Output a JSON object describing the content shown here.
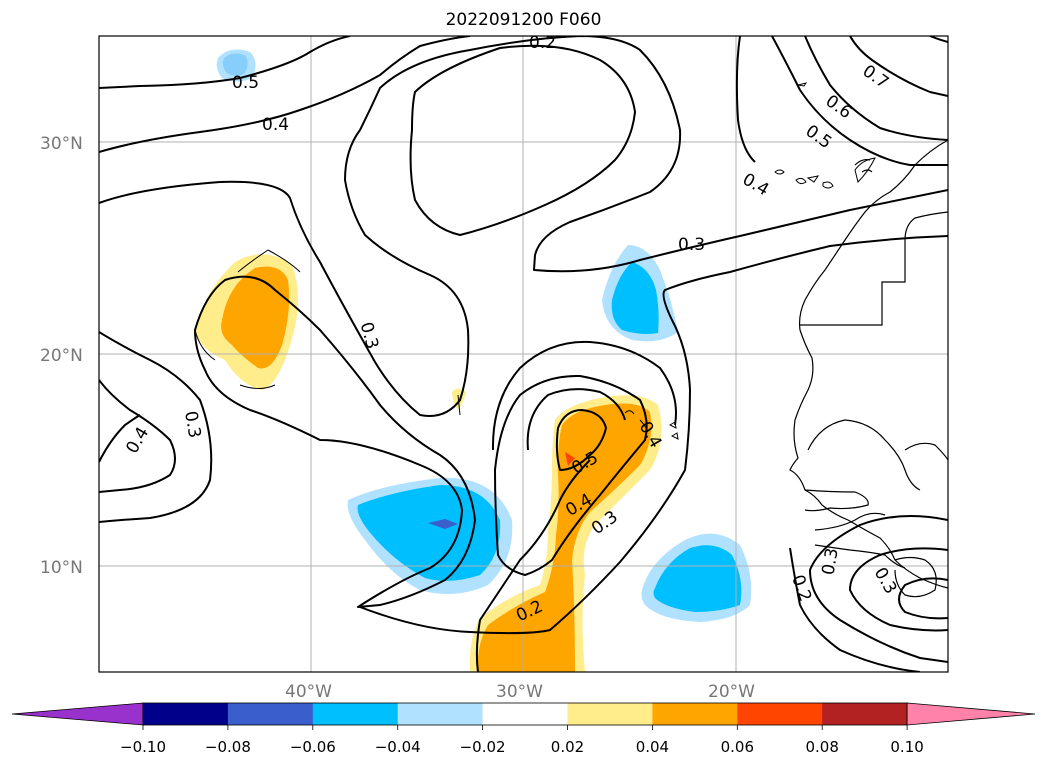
{
  "title": "2022091200 F060",
  "lat_labels": [
    "30°N",
    "20°N",
    "10°N"
  ],
  "lon_labels": [
    "40°W",
    "30°W",
    "20°W"
  ],
  "colorbar": {
    "colors": [
      "#9932cc",
      "#00008b",
      "#3a5fcd",
      "#00bfff",
      "#b0e2ff",
      "#ffffff",
      "#ffec8b",
      "#ffa500",
      "#ff4500",
      "#b22222",
      "#ff82ab"
    ],
    "ticks": [
      "−0.10",
      "−0.08",
      "−0.06",
      "−0.04",
      "−0.02",
      "0.02",
      "0.04",
      "0.06",
      "0.08",
      "0.10"
    ]
  },
  "contour_labels": [
    "0.2",
    "0.5",
    "0.4",
    "0.3",
    "0.4",
    "0.3",
    "0.7",
    "0.6",
    "0.5",
    "0.4",
    "0.3",
    "0.3",
    "0.5",
    "0.4",
    "0.3",
    "0.2",
    "0.2",
    "0.3",
    "0.4"
  ]
}
